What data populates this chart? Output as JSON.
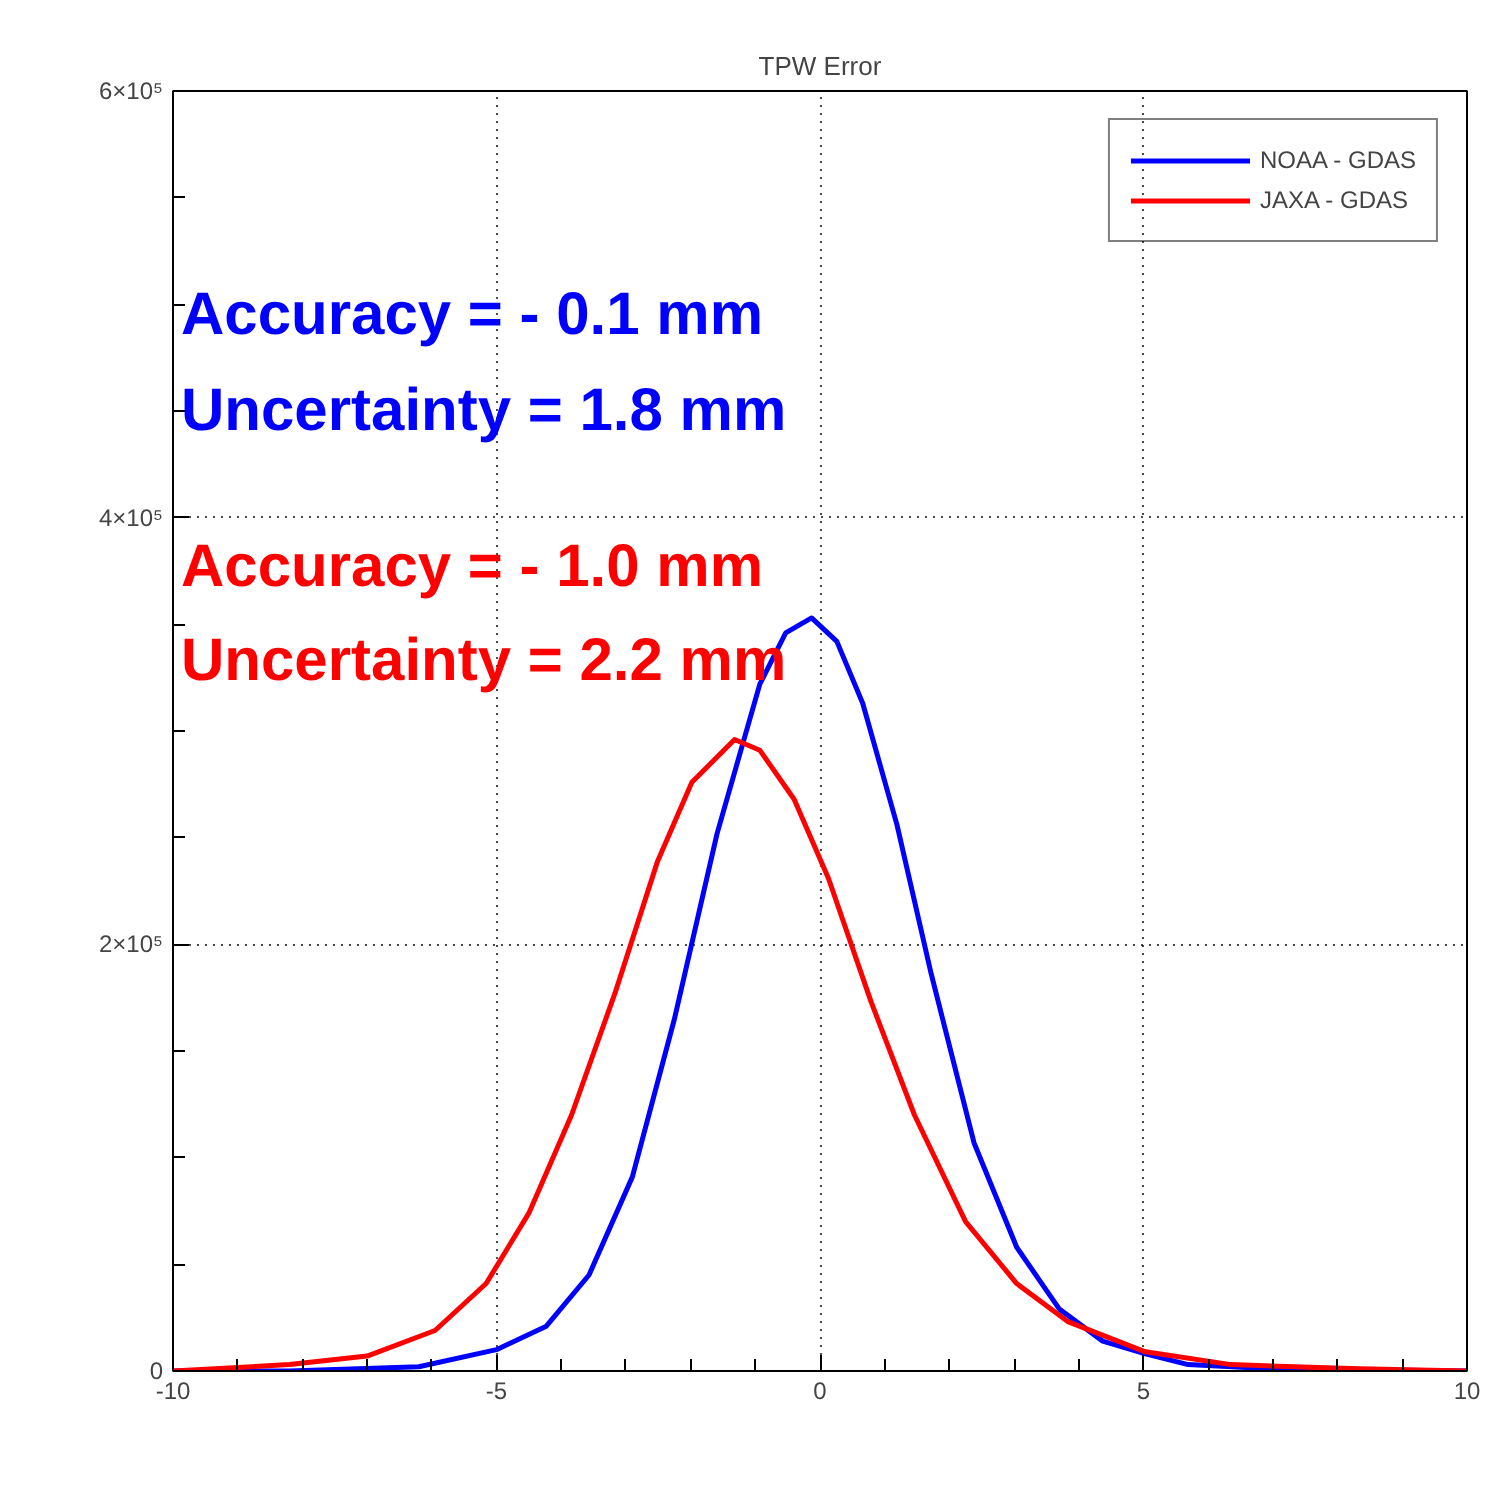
{
  "chart_data": {
    "type": "line",
    "title": "TPW Error",
    "xlim": [
      -10,
      10
    ],
    "xticks": [
      -10,
      {
        "value": -9,
        "label": null
      },
      {
        "value": -8,
        "label": null
      },
      {
        "value": -7,
        "label": null
      },
      {
        "value": -6,
        "label": null
      },
      -5,
      {
        "value": -4,
        "label": null
      },
      {
        "value": -3,
        "label": null
      },
      {
        "value": -2,
        "label": null
      },
      {
        "value": -1,
        "label": null
      },
      0,
      {
        "value": 1,
        "label": null
      },
      {
        "value": 2,
        "label": null
      },
      {
        "value": 3,
        "label": null
      },
      {
        "value": 4,
        "label": null
      },
      5,
      {
        "value": 6,
        "label": null
      },
      {
        "value": 7,
        "label": null
      },
      {
        "value": 8,
        "label": null
      },
      {
        "value": 9,
        "label": null
      },
      10
    ],
    "ylim": [
      0,
      600000
    ],
    "yticks": [
      0,
      {
        "value": 50000,
        "label": null
      },
      {
        "value": 100000,
        "label": null
      },
      {
        "value": 150000,
        "label": null
      },
      {
        "value": 200000,
        "label": "2×10⁵"
      },
      {
        "value": 250000,
        "label": null
      },
      {
        "value": 300000,
        "label": null
      },
      {
        "value": 350000,
        "label": null
      },
      {
        "value": 400000,
        "label": "4×10⁵"
      },
      {
        "value": 450000,
        "label": null
      },
      {
        "value": 500000,
        "label": null
      },
      {
        "value": 550000,
        "label": null
      },
      {
        "value": 600000,
        "label": "6×10⁵"
      }
    ],
    "grid": true,
    "legend": "top right",
    "line_style": "solid",
    "marker": "none",
    "series": [
      {
        "name": "NOAA - GDAS",
        "color": "#0000ff",
        "x": [
          -10,
          -8.2,
          -6.2,
          -5.0,
          -4.23,
          -3.57,
          -2.9,
          -2.25,
          -1.59,
          -0.93,
          -0.53,
          -0.13,
          0.26,
          0.66,
          1.19,
          1.72,
          2.38,
          3.04,
          3.7,
          4.37,
          5.03,
          5.69,
          7.0,
          10
        ],
        "values": [
          0,
          0,
          2000,
          10000,
          21000,
          45000,
          91000,
          165000,
          252000,
          322000,
          346000,
          353000,
          342000,
          313000,
          256000,
          186000,
          107000,
          58000,
          29000,
          14000,
          8000,
          3000,
          1000,
          0
        ]
      },
      {
        "name": "JAXA - GDAS",
        "color": "#ff0000",
        "x": [
          -10,
          -8.2,
          -7.0,
          -5.95,
          -5.16,
          -4.5,
          -3.84,
          -3.17,
          -2.51,
          -1.98,
          -1.32,
          -0.93,
          -0.4,
          0.13,
          0.79,
          1.46,
          2.25,
          3.04,
          3.84,
          5.03,
          6.35,
          8.33,
          10
        ],
        "values": [
          0,
          3000,
          7000,
          19000,
          41000,
          74000,
          120000,
          177000,
          239000,
          276000,
          296000,
          291000,
          268000,
          231000,
          173000,
          120000,
          70000,
          41000,
          23000,
          9000,
          3000,
          1000,
          0
        ]
      }
    ],
    "annotations": [
      "Accuracy = - 0.1 mm",
      "Uncertainty =  1.8 mm",
      "Accuracy = - 1.0 mm",
      "Uncertainty =  2.2 mm"
    ]
  }
}
